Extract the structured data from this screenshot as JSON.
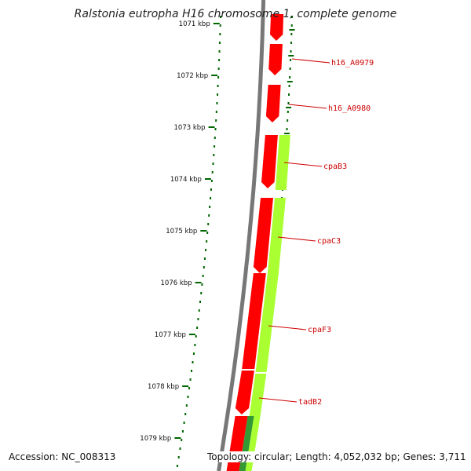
{
  "title": "Ralstonia eutropha H16 chromosome 1, complete genome",
  "footer": {
    "accession": "Accession: NC_008313",
    "summary": "Topology: circular; Length: 4,052,032 bp; Genes: 3,711"
  },
  "ticks": [
    {
      "label": "1071 kbp",
      "kbp": 1071
    },
    {
      "label": "1072 kbp",
      "kbp": 1072
    },
    {
      "label": "1073 kbp",
      "kbp": 1073
    },
    {
      "label": "1074 kbp",
      "kbp": 1074
    },
    {
      "label": "1075 kbp",
      "kbp": 1075
    },
    {
      "label": "1076 kbp",
      "kbp": 1076
    },
    {
      "label": "1077 kbp",
      "kbp": 1077
    },
    {
      "label": "1078 kbp",
      "kbp": 1078
    },
    {
      "label": "1079 kbp",
      "kbp": 1079
    }
  ],
  "gene_labels": [
    {
      "name": "h16_A0979"
    },
    {
      "name": "h16_A0980"
    },
    {
      "name": "cpaB3"
    },
    {
      "name": "cpaC3"
    },
    {
      "name": "cpaF3"
    },
    {
      "name": "tadB2"
    }
  ],
  "colors": {
    "cds": "#ff0000",
    "cds_dark": "#cc0000",
    "gene": "#aaff33",
    "gene_dark": "#66cc00",
    "gene_alt": "#339933",
    "backbone": "#777777",
    "tick": "#006600",
    "label_text": "#cc0000",
    "callout": "#cc0000"
  }
}
